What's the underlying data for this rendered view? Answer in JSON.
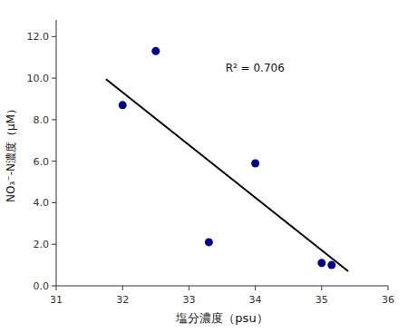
{
  "chart_data": {
    "type": "scatter",
    "x_label": "塩分濃度（psu）",
    "y_label": "NO₃⁻-N濃度（μM）",
    "series": [
      {
        "type": "scatter",
        "color": "#00008B",
        "marker": "circle",
        "x": [
          32.0,
          32.5,
          33.3,
          34.0,
          35.0,
          35.15
        ],
        "values": [
          8.7,
          11.3,
          2.1,
          5.9,
          1.1,
          1.0
        ]
      },
      {
        "type": "line",
        "color": "#000000",
        "line_style": "solid",
        "x": [
          31.75,
          35.4
        ],
        "values": [
          9.95,
          0.7
        ]
      }
    ],
    "annotations": [
      {
        "text": "R² = 0.706",
        "x": 33.55,
        "y": 10.3
      }
    ],
    "xlim": [
      31,
      36
    ],
    "ylim": [
      0.0,
      12.8
    ],
    "xticks": [
      31,
      32,
      33,
      34,
      35,
      36
    ],
    "yticks": [
      {
        "value": 0.0,
        "label": "0.0"
      },
      {
        "value": 2.0,
        "label": "2.0"
      },
      {
        "value": 4.0,
        "label": "4.0"
      },
      {
        "value": 6.0,
        "label": "6.0"
      },
      {
        "value": 8.0,
        "label": "8.0"
      },
      {
        "value": 10.0,
        "label": "10.0"
      },
      {
        "value": 12.0,
        "label": "12.0"
      }
    ],
    "grid": false
  }
}
